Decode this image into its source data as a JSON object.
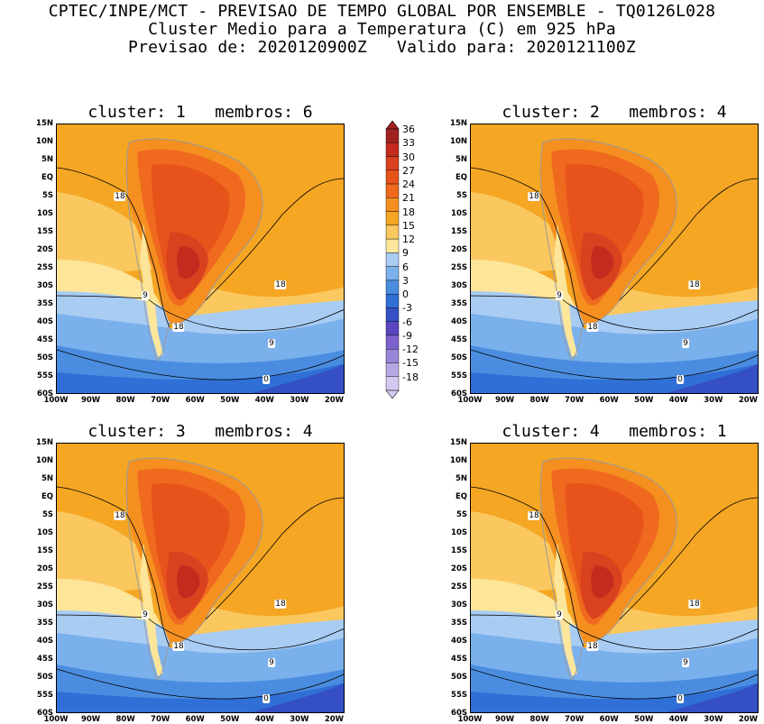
{
  "header": {
    "line1": "CPTEC/INPE/MCT - PREVISAO DE TEMPO GLOBAL POR ENSEMBLE - TQ0126L028",
    "line2": "Cluster Medio para a Temperatura (C) em 925 hPa",
    "line3": "Previsao de: 2020120900Z   Valido para: 2020121100Z"
  },
  "panels": [
    {
      "title": "cluster: 1   membros: 6",
      "contour_labels": [
        "18",
        "9",
        "18",
        "18",
        "9",
        "0"
      ]
    },
    {
      "title": "cluster: 2   membros: 4",
      "contour_labels": [
        "18",
        "9",
        "18",
        "18",
        "9",
        "0"
      ]
    },
    {
      "title": "cluster: 3   membros: 4",
      "contour_labels": [
        "18",
        "9",
        "18",
        "18",
        "9",
        "0"
      ]
    },
    {
      "title": "cluster: 4   membros: 1",
      "contour_labels": [
        "18",
        "9",
        "18",
        "18",
        "9",
        "0"
      ]
    }
  ],
  "lat_ticks": [
    "15N",
    "10N",
    "5N",
    "EQ",
    "5S",
    "10S",
    "15S",
    "20S",
    "25S",
    "30S",
    "35S",
    "40S",
    "45S",
    "50S",
    "55S",
    "60S"
  ],
  "lon_ticks": [
    "100W",
    "90W",
    "80W",
    "70W",
    "60W",
    "50W",
    "40W",
    "30W",
    "20W"
  ],
  "colorbar": {
    "labels": [
      "36",
      "33",
      "30",
      "27",
      "24",
      "21",
      "18",
      "15",
      "12",
      "9",
      "6",
      "3",
      "0",
      "-3",
      "-6",
      "-9",
      "-12",
      "-15",
      "-18"
    ],
    "colors": [
      "#a02020",
      "#c42a1e",
      "#d9411f",
      "#e8531c",
      "#ef6a1e",
      "#f59020",
      "#f5a623",
      "#fbc860",
      "#fde59a",
      "#a8ccf2",
      "#7ab0ec",
      "#4a8de0",
      "#2f6fd6",
      "#3450c4",
      "#5a46c0",
      "#7d62cc",
      "#9a86d8",
      "#b7a8e4",
      "#d4c8f0"
    ]
  }
}
